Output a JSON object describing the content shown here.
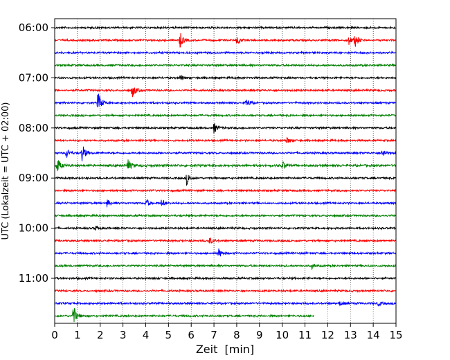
{
  "chart_data": {
    "type": "line",
    "xlabel": "Zeit  [min]",
    "ylabel": "UTC (Lokalzeit = UTC + 02:00)",
    "xlim": [
      0,
      15
    ],
    "x_ticks": [
      0,
      1,
      2,
      3,
      4,
      5,
      6,
      7,
      8,
      9,
      10,
      11,
      12,
      13,
      14,
      15
    ],
    "x_tick_labels": [
      "0",
      "1",
      "2",
      "3",
      "4",
      "5",
      "6",
      "7",
      "8",
      "9",
      "10",
      "11",
      "12",
      "13",
      "14",
      "15"
    ],
    "y_ticks": [
      "06:00",
      "07:00",
      "08:00",
      "09:00",
      "10:00",
      "11:00"
    ],
    "first_row_start": "06:00",
    "minutes_per_row": 15,
    "grid": "vertical dotted lines at each minute",
    "color_cycle": [
      "#000000",
      "#ff0000",
      "#0000ff",
      "#008000"
    ],
    "series": [
      {
        "start": "06:00",
        "color": "#000000",
        "end_min": 15,
        "noise": 1.0,
        "events": []
      },
      {
        "start": "06:15",
        "color": "#ff0000",
        "end_min": 15,
        "noise": 1.0,
        "events": [
          {
            "t": 5.5,
            "amp": 12
          },
          {
            "t": 8.0,
            "amp": 7
          },
          {
            "t": 12.9,
            "amp": 8
          },
          {
            "t": 13.2,
            "amp": 10
          }
        ]
      },
      {
        "start": "06:30",
        "color": "#0000ff",
        "end_min": 15,
        "noise": 1.0,
        "events": []
      },
      {
        "start": "06:45",
        "color": "#008000",
        "end_min": 15,
        "noise": 1.0,
        "events": []
      },
      {
        "start": "07:00",
        "color": "#000000",
        "end_min": 15,
        "noise": 1.0,
        "events": [
          {
            "t": 5.5,
            "amp": 4
          }
        ]
      },
      {
        "start": "07:15",
        "color": "#ff0000",
        "end_min": 15,
        "noise": 1.0,
        "events": [
          {
            "t": 3.4,
            "amp": 12
          }
        ]
      },
      {
        "start": "07:30",
        "color": "#0000ff",
        "end_min": 15,
        "noise": 1.0,
        "events": [
          {
            "t": 1.9,
            "amp": 18
          },
          {
            "t": 8.4,
            "amp": 8
          }
        ]
      },
      {
        "start": "07:45",
        "color": "#008000",
        "end_min": 15,
        "noise": 1.0,
        "events": []
      },
      {
        "start": "08:00",
        "color": "#000000",
        "end_min": 15,
        "noise": 1.0,
        "events": [
          {
            "t": 7.0,
            "amp": 8
          }
        ]
      },
      {
        "start": "08:15",
        "color": "#ff0000",
        "end_min": 15,
        "noise": 1.0,
        "events": [
          {
            "t": 10.2,
            "amp": 5
          }
        ]
      },
      {
        "start": "08:30",
        "color": "#0000ff",
        "end_min": 15,
        "noise": 1.0,
        "events": [
          {
            "t": 0.5,
            "amp": 9
          },
          {
            "t": 1.2,
            "amp": 14
          },
          {
            "t": 14.4,
            "amp": 7
          }
        ]
      },
      {
        "start": "08:45",
        "color": "#008000",
        "end_min": 15,
        "noise": 1.2,
        "events": [
          {
            "t": 0.1,
            "amp": 12
          },
          {
            "t": 3.2,
            "amp": 10
          },
          {
            "t": 10.0,
            "amp": 6
          }
        ]
      },
      {
        "start": "09:00",
        "color": "#000000",
        "end_min": 15,
        "noise": 1.0,
        "events": [
          {
            "t": 5.8,
            "amp": 10
          }
        ]
      },
      {
        "start": "09:15",
        "color": "#ff0000",
        "end_min": 15,
        "noise": 1.0,
        "events": []
      },
      {
        "start": "09:30",
        "color": "#0000ff",
        "end_min": 15,
        "noise": 1.0,
        "events": [
          {
            "t": 2.3,
            "amp": 5
          },
          {
            "t": 4.0,
            "amp": 7
          },
          {
            "t": 4.7,
            "amp": 6
          }
        ]
      },
      {
        "start": "09:45",
        "color": "#008000",
        "end_min": 15,
        "noise": 1.0,
        "events": []
      },
      {
        "start": "10:00",
        "color": "#000000",
        "end_min": 15,
        "noise": 1.0,
        "events": [
          {
            "t": 1.8,
            "amp": 4
          }
        ]
      },
      {
        "start": "10:15",
        "color": "#ff0000",
        "end_min": 15,
        "noise": 1.0,
        "events": [
          {
            "t": 6.8,
            "amp": 5
          }
        ]
      },
      {
        "start": "10:30",
        "color": "#0000ff",
        "end_min": 15,
        "noise": 1.0,
        "events": [
          {
            "t": 7.2,
            "amp": 7
          }
        ]
      },
      {
        "start": "10:45",
        "color": "#008000",
        "end_min": 15,
        "noise": 1.0,
        "events": [
          {
            "t": 11.3,
            "amp": 4
          }
        ]
      },
      {
        "start": "11:00",
        "color": "#000000",
        "end_min": 15,
        "noise": 1.0,
        "events": []
      },
      {
        "start": "11:15",
        "color": "#ff0000",
        "end_min": 15,
        "noise": 1.0,
        "events": []
      },
      {
        "start": "11:30",
        "color": "#0000ff",
        "end_min": 15,
        "noise": 1.0,
        "events": [
          {
            "t": 12.5,
            "amp": 4
          },
          {
            "t": 14.2,
            "amp": 4
          }
        ]
      },
      {
        "start": "11:45",
        "color": "#008000",
        "end_min": 11.4,
        "noise": 1.0,
        "events": [
          {
            "t": 0.8,
            "amp": 18
          }
        ]
      }
    ]
  }
}
